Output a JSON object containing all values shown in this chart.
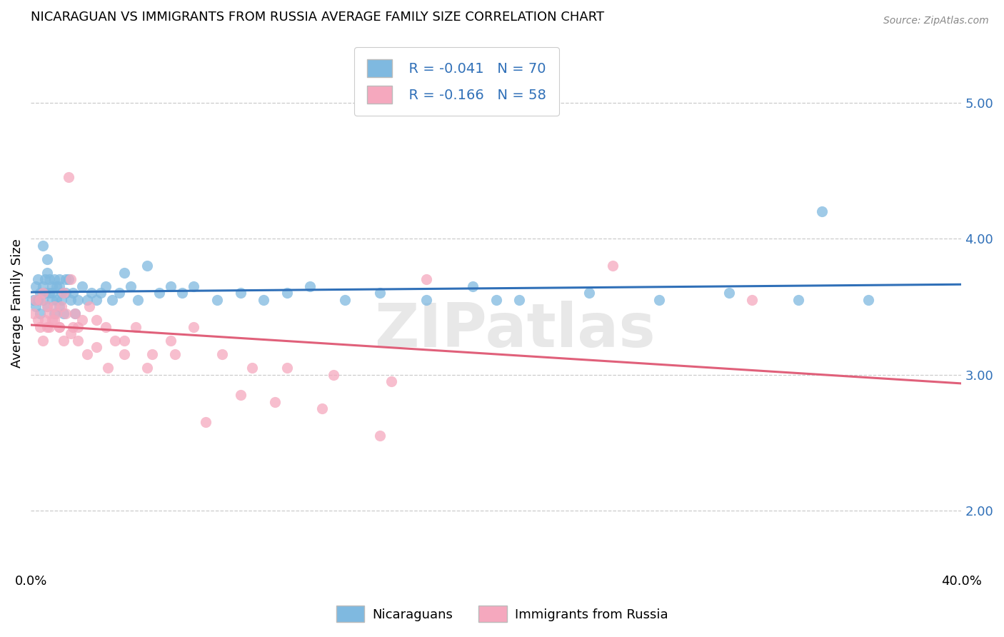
{
  "title": "NICARAGUAN VS IMMIGRANTS FROM RUSSIA AVERAGE FAMILY SIZE CORRELATION CHART",
  "source": "Source: ZipAtlas.com",
  "ylabel": "Average Family Size",
  "yticks": [
    2.0,
    3.0,
    4.0,
    5.0
  ],
  "xlim": [
    0.0,
    0.4
  ],
  "ylim": [
    1.55,
    5.5
  ],
  "legend1_R": "R = -0.041",
  "legend1_N": "N = 70",
  "legend2_R": "R = -0.166",
  "legend2_N": "N = 58",
  "legend_label1": "Nicaraguans",
  "legend_label2": "Immigrants from Russia",
  "blue_color": "#7fb9e0",
  "pink_color": "#f5a8be",
  "blue_line_color": "#3070b8",
  "pink_line_color": "#e0607a",
  "watermark": "ZIPatlas",
  "blue_x": [
    0.001,
    0.002,
    0.002,
    0.003,
    0.003,
    0.004,
    0.004,
    0.005,
    0.005,
    0.006,
    0.006,
    0.007,
    0.007,
    0.008,
    0.008,
    0.009,
    0.009,
    0.01,
    0.01,
    0.011,
    0.011,
    0.012,
    0.012,
    0.013,
    0.013,
    0.014,
    0.015,
    0.016,
    0.017,
    0.018,
    0.019,
    0.02,
    0.022,
    0.024,
    0.026,
    0.028,
    0.03,
    0.032,
    0.035,
    0.038,
    0.04,
    0.043,
    0.046,
    0.05,
    0.055,
    0.06,
    0.065,
    0.07,
    0.08,
    0.09,
    0.1,
    0.11,
    0.12,
    0.135,
    0.15,
    0.17,
    0.19,
    0.21,
    0.24,
    0.27,
    0.3,
    0.33,
    0.36,
    0.005,
    0.007,
    0.009,
    0.012,
    0.015,
    0.2,
    0.34
  ],
  "blue_y": [
    3.55,
    3.65,
    3.5,
    3.7,
    3.55,
    3.6,
    3.45,
    3.65,
    3.55,
    3.7,
    3.6,
    3.75,
    3.5,
    3.6,
    3.7,
    3.55,
    3.65,
    3.7,
    3.45,
    3.55,
    3.65,
    3.7,
    3.5,
    3.6,
    3.55,
    3.45,
    3.6,
    3.7,
    3.55,
    3.6,
    3.45,
    3.55,
    3.65,
    3.55,
    3.6,
    3.55,
    3.6,
    3.65,
    3.55,
    3.6,
    3.75,
    3.65,
    3.55,
    3.8,
    3.6,
    3.65,
    3.6,
    3.65,
    3.55,
    3.6,
    3.55,
    3.6,
    3.65,
    3.55,
    3.6,
    3.55,
    3.65,
    3.55,
    3.6,
    3.55,
    3.6,
    3.55,
    3.55,
    3.95,
    3.85,
    3.6,
    3.65,
    3.7,
    3.55,
    4.2
  ],
  "pink_x": [
    0.001,
    0.002,
    0.003,
    0.004,
    0.004,
    0.005,
    0.006,
    0.007,
    0.007,
    0.008,
    0.009,
    0.01,
    0.011,
    0.012,
    0.013,
    0.014,
    0.015,
    0.016,
    0.017,
    0.018,
    0.019,
    0.02,
    0.022,
    0.025,
    0.028,
    0.032,
    0.036,
    0.04,
    0.045,
    0.052,
    0.06,
    0.07,
    0.082,
    0.095,
    0.11,
    0.13,
    0.155,
    0.005,
    0.008,
    0.01,
    0.012,
    0.014,
    0.017,
    0.02,
    0.024,
    0.028,
    0.033,
    0.04,
    0.05,
    0.062,
    0.075,
    0.09,
    0.105,
    0.125,
    0.15,
    0.17,
    0.25,
    0.31
  ],
  "pink_y": [
    3.45,
    3.55,
    3.4,
    3.55,
    3.35,
    3.6,
    3.4,
    3.5,
    3.35,
    3.45,
    3.4,
    3.5,
    3.45,
    3.35,
    3.5,
    3.6,
    3.45,
    4.45,
    3.7,
    3.35,
    3.45,
    3.35,
    3.4,
    3.5,
    3.4,
    3.35,
    3.25,
    3.25,
    3.35,
    3.15,
    3.25,
    3.35,
    3.15,
    3.05,
    3.05,
    3.0,
    2.95,
    3.25,
    3.35,
    3.4,
    3.35,
    3.25,
    3.3,
    3.25,
    3.15,
    3.2,
    3.05,
    3.15,
    3.05,
    3.15,
    2.65,
    2.85,
    2.8,
    2.75,
    2.55,
    3.7,
    3.8,
    3.55
  ]
}
